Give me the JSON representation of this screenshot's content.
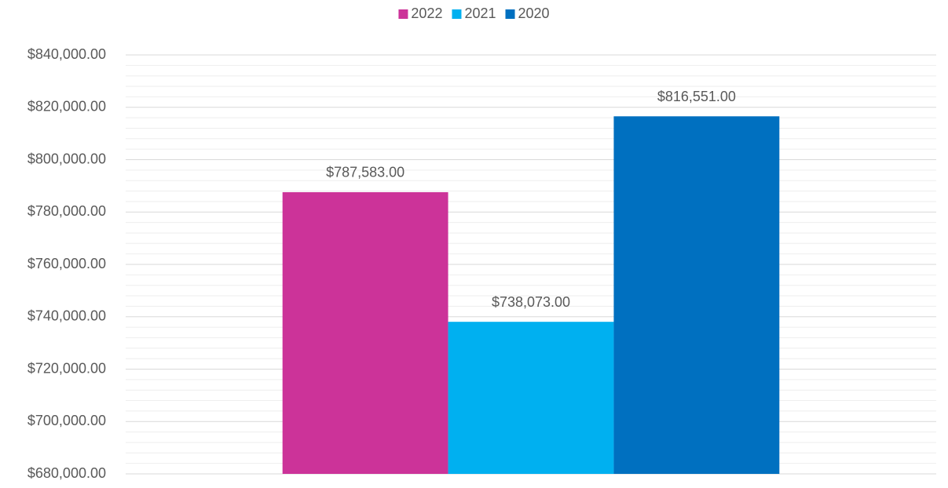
{
  "chart_data": {
    "type": "bar",
    "categories": [
      null
    ],
    "series": [
      {
        "name": "2022",
        "color": "#CC3399",
        "values": [
          787583
        ],
        "value_labels": [
          "$787,583.00"
        ]
      },
      {
        "name": "2021",
        "color": "#00B0F0",
        "values": [
          738073
        ],
        "value_labels": [
          "$738,073.00"
        ]
      },
      {
        "name": "2020",
        "color": "#0070C0",
        "values": [
          816551
        ],
        "value_labels": [
          "$816,551.00"
        ]
      }
    ],
    "ylim": [
      680000,
      840000
    ],
    "yticks": [
      {
        "value": 680000,
        "label": "$680,000.00"
      },
      {
        "value": 700000,
        "label": "$700,000.00"
      },
      {
        "value": 720000,
        "label": "$720,000.00"
      },
      {
        "value": 740000,
        "label": "$740,000.00"
      },
      {
        "value": 760000,
        "label": "$760,000.00"
      },
      {
        "value": 780000,
        "label": "$780,000.00"
      },
      {
        "value": 800000,
        "label": "$800,000.00"
      },
      {
        "value": 820000,
        "label": "$820,000.00"
      },
      {
        "value": 840000,
        "label": "$840,000.00"
      }
    ],
    "grid": true,
    "legend": "top"
  }
}
